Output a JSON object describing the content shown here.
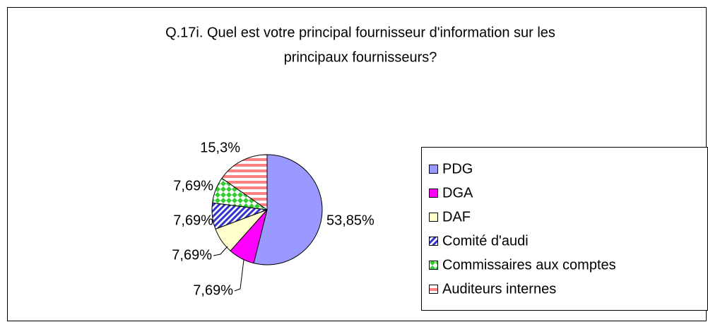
{
  "chart_data": {
    "type": "pie",
    "title": [
      "Q.17i. Quel est votre principal fournisseur d'information sur les",
      "principaux fournisseurs?"
    ],
    "categories": [
      "PDG",
      "DGA",
      "DAF",
      "Comité d'audi",
      "Commissaires aux comptes",
      "Auditeurs internes"
    ],
    "values": [
      53.85,
      7.69,
      7.69,
      7.69,
      7.69,
      15.3
    ],
    "value_labels": [
      "53,85%",
      "7,69%",
      "7,69%",
      "7,69%",
      "7,69%",
      "15,3%"
    ],
    "colors": [
      "#9999ff",
      "#ff00ff",
      "#ffffcc",
      "#3333cc",
      "#33cc33",
      "#ff8080"
    ],
    "patterns": [
      null,
      null,
      null,
      "diagonal",
      "checker",
      "horizontal"
    ],
    "legend": "right"
  }
}
